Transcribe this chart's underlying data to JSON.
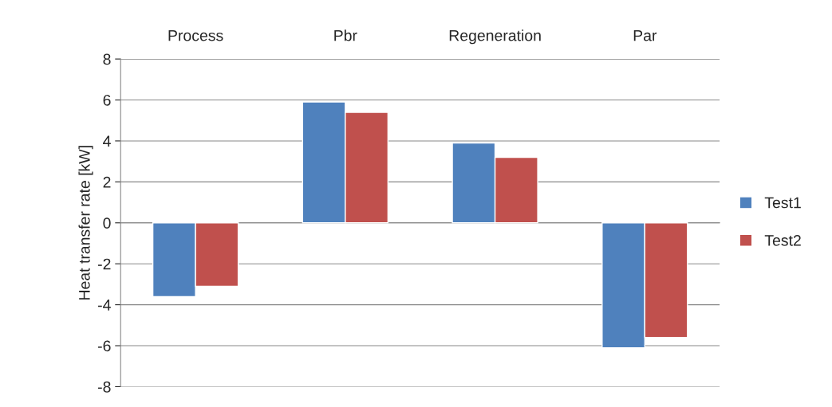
{
  "chart_data": {
    "type": "bar",
    "ylabel": "Heat transfer rate [kW]",
    "categories": [
      "Process",
      "Pbr",
      "Regeneration",
      "Par"
    ],
    "series": [
      {
        "name": "Test1",
        "color": "#4f81bd",
        "values": [
          -3.6,
          5.9,
          3.9,
          -6.1
        ]
      },
      {
        "name": "Test2",
        "color": "#c0504d",
        "values": [
          -3.1,
          5.4,
          3.2,
          -5.6
        ]
      }
    ],
    "ylim": [
      -8,
      8
    ],
    "yticks": [
      -8,
      -6,
      -4,
      -2,
      0,
      2,
      4,
      6,
      8
    ],
    "grid": "y",
    "legend": "right"
  }
}
